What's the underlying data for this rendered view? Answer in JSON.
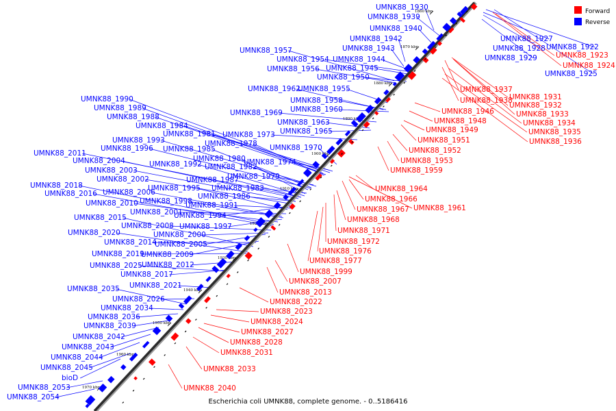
{
  "legend": {
    "forward_label": "Forward",
    "reverse_label": "Reverse",
    "forward_color": "#ff0000",
    "reverse_color": "#0000ff"
  },
  "caption": "Escherichia coli UMNK88, complete genome. - 0..5186416",
  "ticks": [
    "1860 kbp",
    "1870 kbp",
    "1880 kbp",
    "1890 kbp",
    "1900 kbp",
    "1910 kbp",
    "1920 kbp",
    "1930 kbp",
    "1940 kbp",
    "1950 kbp",
    "1960 kbp",
    "1970 kbp"
  ],
  "reverse_genes": [
    "UMNK88_1930",
    "UMNK88_1939",
    "UMNK88_1940",
    "UMNK88_1942",
    "UMNK88_1943",
    "UMNK88_1957",
    "UMNK88_1954",
    "UMNK88_1944",
    "UMNK88_1956",
    "UMNK88_1945",
    "UMNK88_1950",
    "UMNK88_1962",
    "UMNK88_1955",
    "UMNK88_1958",
    "UMNK88_1960",
    "UMNK88_1969",
    "UMNK88_1963",
    "UMNK88_1965",
    "UMNK88_1990",
    "UMNK88_1989",
    "UMNK88_1988",
    "UMNK88_1984",
    "UMNK88_1981",
    "UMNK88_1973",
    "UMNK88_1993",
    "UMNK88_1978",
    "UMNK88_1996",
    "UMNK88_1985",
    "UMNK88_1970",
    "UMNK88_2011",
    "UMNK88_1980",
    "UMNK88_1974",
    "UMNK88_2004",
    "UMNK88_1992",
    "UMNK88_1982",
    "UMNK88_2003",
    "UMNK88_1987",
    "UMNK88_1979",
    "UMNK88_2002",
    "UMNK88_2018",
    "UMNK88_1995",
    "UMNK88_1983",
    "UMNK88_2016",
    "UMNK88_2006",
    "UMNK88_1986",
    "UMNK88_2010",
    "UMNK88_1998",
    "UMNK88_1991",
    "UMNK88_2001",
    "UMNK88_1994",
    "UMNK88_2015",
    "UMNK88_2008",
    "UMNK88_1997",
    "UMNK88_2020",
    "UMNK88_2000",
    "UMNK88_2014",
    "UMNK88_2005",
    "UMNK88_2019",
    "UMNK88_2009",
    "UMNK88_2025",
    "UMNK88_2012",
    "UMNK88_2017",
    "UMNK88_2021",
    "UMNK88_2035",
    "UMNK88_2026",
    "UMNK88_2034",
    "UMNK88_2036",
    "UMNK88_2039",
    "UMNK88_2042",
    "UMNK88_2043",
    "UMNK88_2044",
    "UMNK88_2045",
    "bioD",
    "UMNK88_2053",
    "UMNK88_2054",
    "UMNK88_1927",
    "UMNK88_1922",
    "UMNK88_1928",
    "UMNK88_1929",
    "UMNK88_1925"
  ],
  "forward_genes": [
    "UMNK88_1923",
    "UMNK88_1924",
    "UMNK88_1937",
    "UMNK88_1931",
    "UMNK88_1938",
    "UMNK88_1932",
    "UMNK88_1946",
    "UMNK88_1933",
    "UMNK88_1948",
    "UMNK88_1934",
    "UMNK88_1949",
    "UMNK88_1935",
    "UMNK88_1951",
    "UMNK88_1936",
    "UMNK88_1952",
    "UMNK88_1953",
    "UMNK88_1959",
    "UMNK88_1964",
    "UMNK88_1966",
    "UMNK88_1961",
    "UMNK88_1967",
    "UMNK88_1968",
    "UMNK88_1971",
    "UMNK88_1972",
    "UMNK88_1976",
    "UMNK88_1977",
    "UMNK88_1999",
    "UMNK88_2007",
    "UMNK88_2013",
    "UMNK88_2022",
    "UMNK88_2023",
    "UMNK88_2024",
    "UMNK88_2027",
    "UMNK88_2028",
    "UMNK88_2031",
    "UMNK88_2033",
    "UMNK88_2040"
  ]
}
